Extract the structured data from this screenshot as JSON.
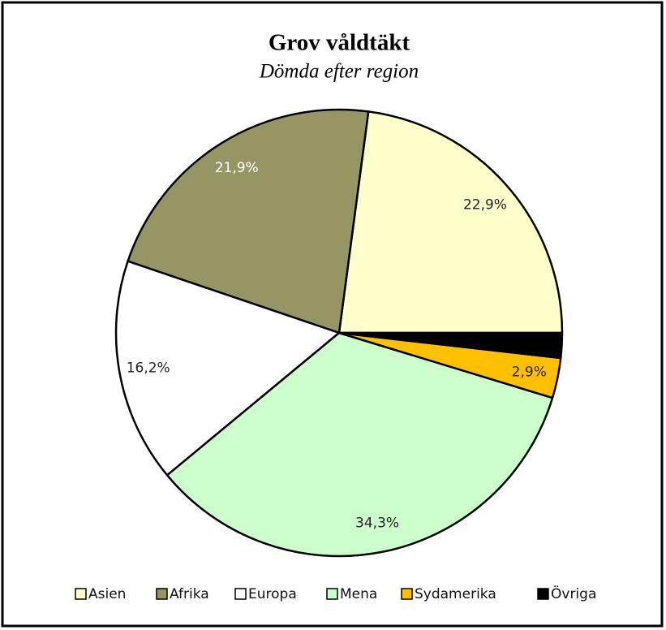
{
  "chart_data": {
    "type": "pie",
    "title": "Grov våldtäkt",
    "subtitle": "Dömda efter region",
    "categories": [
      "Asien",
      "Afrika",
      "Europa",
      "Mena",
      "Sydamerika",
      "Övriga"
    ],
    "values": [
      22.9,
      21.9,
      16.2,
      34.3,
      2.9,
      1.8
    ],
    "value_labels": [
      "22,9%",
      "21,9%",
      "16,2%",
      "34,3%",
      "2,9%",
      null
    ],
    "colors": [
      "#ffffcc",
      "#959664",
      "#ffffff",
      "#ccffcc",
      "#ffc000",
      "#000000"
    ],
    "legend": "bottom"
  }
}
